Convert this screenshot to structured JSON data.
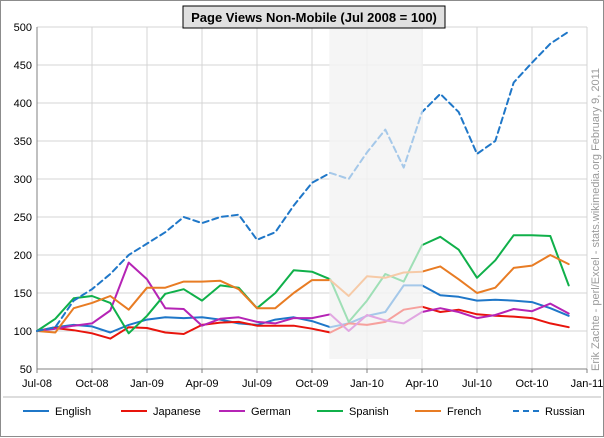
{
  "chart_data": {
    "type": "line",
    "title": "Page Views Non-Mobile (Jul 2008 = 100)",
    "xlabel": "",
    "ylabel": "",
    "ylim": [
      50,
      500
    ],
    "y_ticks": [
      50,
      100,
      150,
      200,
      250,
      300,
      350,
      400,
      450,
      500
    ],
    "x_ticks": [
      "Jul-08",
      "Oct-08",
      "Jan-09",
      "Apr-09",
      "Jul-09",
      "Oct-09",
      "Jan-10",
      "Apr-10",
      "Jul-10",
      "Oct-10",
      "Jan-11"
    ],
    "grid": true,
    "legend_position": "bottom",
    "x": [
      "Jul-08",
      "Aug-08",
      "Sep-08",
      "Oct-08",
      "Nov-08",
      "Dec-08",
      "Jan-09",
      "Feb-09",
      "Mar-09",
      "Apr-09",
      "May-09",
      "Jun-09",
      "Jul-09",
      "Aug-09",
      "Sep-09",
      "Oct-09",
      "Nov-09",
      "Dec-09",
      "Jan-10",
      "Feb-10",
      "Mar-10",
      "Apr-10",
      "May-10",
      "Jun-10",
      "Jul-10",
      "Aug-10",
      "Sep-10",
      "Oct-10",
      "Nov-10",
      "Dec-10"
    ],
    "shaded_region": {
      "from": "Nov-09",
      "to": "Apr-10",
      "note": "faded"
    },
    "series": [
      {
        "name": "English",
        "color": "#1f77c8",
        "dash": false,
        "values": [
          100,
          105,
          108,
          106,
          98,
          108,
          115,
          118,
          117,
          118,
          115,
          110,
          108,
          115,
          118,
          113,
          105,
          110,
          120,
          125,
          160,
          160,
          147,
          145,
          140,
          141,
          140,
          138,
          130,
          120
        ]
      },
      {
        "name": "Japanese",
        "color": "#e8140c",
        "dash": false,
        "values": [
          100,
          104,
          101,
          97,
          90,
          105,
          104,
          98,
          96,
          108,
          111,
          112,
          107,
          107,
          107,
          103,
          98,
          110,
          108,
          112,
          128,
          132,
          125,
          128,
          122,
          120,
          119,
          117,
          110,
          105
        ]
      },
      {
        "name": "German",
        "color": "#b524b5",
        "dash": false,
        "values": [
          100,
          103,
          107,
          110,
          127,
          190,
          168,
          130,
          129,
          107,
          116,
          118,
          112,
          110,
          117,
          117,
          122,
          100,
          121,
          114,
          110,
          125,
          130,
          125,
          117,
          121,
          129,
          126,
          136,
          123
        ]
      },
      {
        "name": "Spanish",
        "color": "#10b04a",
        "dash": false,
        "values": [
          100,
          116,
          143,
          146,
          137,
          97,
          120,
          149,
          155,
          140,
          160,
          157,
          130,
          150,
          180,
          178,
          168,
          112,
          140,
          175,
          165,
          213,
          224,
          207,
          170,
          193,
          226,
          226,
          225,
          160
        ]
      },
      {
        "name": "French",
        "color": "#e87c24",
        "dash": false,
        "values": [
          100,
          98,
          130,
          137,
          146,
          128,
          157,
          157,
          165,
          165,
          166,
          155,
          130,
          130,
          150,
          167,
          167,
          146,
          172,
          170,
          177,
          178,
          185,
          168,
          150,
          157,
          183,
          186,
          200,
          188
        ]
      },
      {
        "name": "Russian",
        "color": "#1f77c8",
        "dash": true,
        "values": [
          100,
          105,
          140,
          155,
          175,
          200,
          215,
          230,
          250,
          242,
          250,
          253,
          220,
          230,
          265,
          295,
          308,
          300,
          335,
          365,
          315,
          388,
          412,
          388,
          333,
          350,
          427,
          453,
          478,
          494
        ]
      }
    ]
  },
  "side_note": "Erik Zachte  -  perl/Excel  -  stats.wikimedia.org     February 9, 2011"
}
